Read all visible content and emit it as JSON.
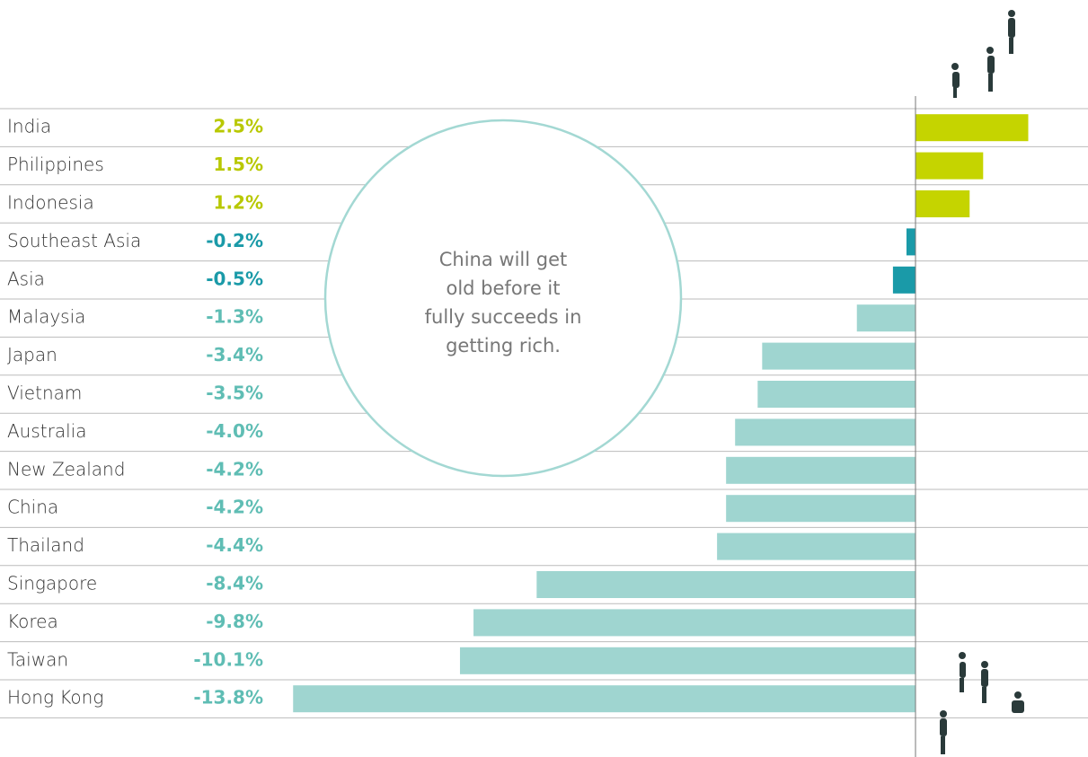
{
  "chart_data": {
    "type": "bar",
    "orientation": "horizontal",
    "annotation": [
      "China will get",
      "old before it",
      "fully succeeds in",
      "getting rich."
    ],
    "categories": [
      "India",
      "Philippines",
      "Indonesia",
      "Southeast Asia",
      "Asia",
      "Malaysia",
      "Japan",
      "Vietnam",
      "Australia",
      "New Zealand",
      "China",
      "Thailand",
      "Singapore",
      "Korea",
      "Taiwan",
      "Hong Kong"
    ],
    "values": [
      2.5,
      1.5,
      1.2,
      -0.2,
      -0.5,
      -1.3,
      -3.4,
      -3.5,
      -4.0,
      -4.2,
      -4.2,
      -4.4,
      -8.4,
      -9.8,
      -10.1,
      -13.8
    ],
    "value_labels": [
      "2.5%",
      "1.5%",
      "1.2%",
      "-0.2%",
      "-0.5%",
      "-1.3%",
      "-3.4%",
      "-3.5%",
      "-4.0%",
      "-4.2%",
      "-4.2%",
      "-4.4%",
      "-8.4%",
      "-9.8%",
      "-10.1%",
      "-13.8%"
    ],
    "colors": [
      "#c5d400",
      "#c5d400",
      "#c5d400",
      "#1a9aa8",
      "#1a9aa8",
      "#9fd5d0",
      "#9fd5d0",
      "#9fd5d0",
      "#9fd5d0",
      "#9fd5d0",
      "#9fd5d0",
      "#9fd5d0",
      "#9fd5d0",
      "#9fd5d0",
      "#9fd5d0",
      "#9fd5d0"
    ],
    "label_colors": [
      "#b8c800",
      "#b8c800",
      "#b8c800",
      "#1a9aa8",
      "#1a9aa8",
      "#5fbdb4",
      "#5fbdb4",
      "#5fbdb4",
      "#5fbdb4",
      "#5fbdb4",
      "#5fbdb4",
      "#5fbdb4",
      "#5fbdb4",
      "#5fbdb4",
      "#5fbdb4",
      "#5fbdb4"
    ]
  }
}
